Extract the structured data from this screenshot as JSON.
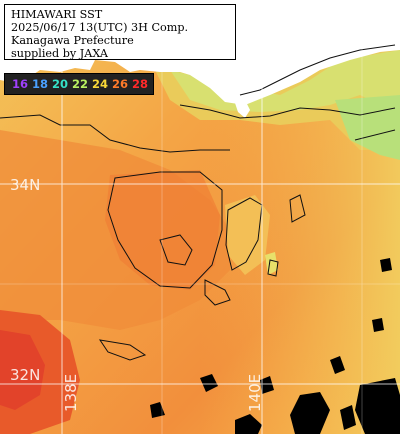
{
  "title": {
    "line1": "HIMAWARI SST",
    "line2": "2025/06/17 13(UTC) 3H Comp.",
    "line3": "Kanagawa Prefecture",
    "line4": "supplied by JAXA"
  },
  "legend": {
    "items": [
      {
        "label": "16",
        "color": "#a040ff"
      },
      {
        "label": "18",
        "color": "#4aa0ff"
      },
      {
        "label": "20",
        "color": "#35e0c8"
      },
      {
        "label": "22",
        "color": "#b8f060"
      },
      {
        "label": "24",
        "color": "#f8d838"
      },
      {
        "label": "26",
        "color": "#ff7a2a"
      },
      {
        "label": "28",
        "color": "#ff2a2a"
      }
    ]
  },
  "grid": {
    "lat_labels": [
      "34N",
      "32N"
    ],
    "lon_labels": [
      "138E",
      "140E"
    ]
  },
  "colors": {
    "sea_warm": "#f08a3a",
    "sea_mid": "#f6a848",
    "sea_cool": "#f3c35a",
    "coast_green": "#c9ea7a",
    "land": "#ffffff",
    "cloud": "#000000",
    "hot": "#e8582a",
    "grid": "#ffffff"
  }
}
